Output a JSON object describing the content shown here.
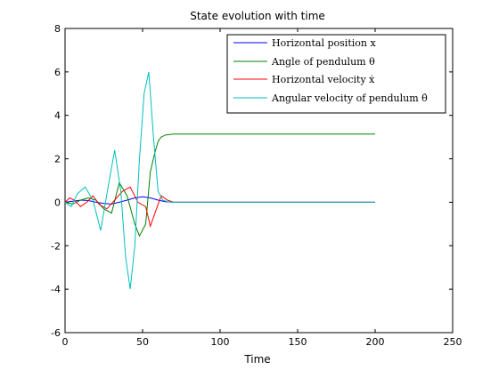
{
  "chart_data": {
    "type": "line",
    "title": "State evolution with time",
    "xlabel": "Time",
    "ylabel": "",
    "xlim": [
      0,
      250
    ],
    "ylim": [
      -6,
      8
    ],
    "xticks": [
      0,
      50,
      100,
      150,
      200,
      250
    ],
    "yticks": [
      -6,
      -4,
      -2,
      0,
      2,
      4,
      6,
      8
    ],
    "grid": false,
    "legend_position": "top-right",
    "series": [
      {
        "name": "Horizontal position x",
        "color": "#0000ff",
        "x": [
          0,
          5,
          10,
          15,
          20,
          25,
          30,
          35,
          40,
          45,
          50,
          55,
          60,
          65,
          70,
          200
        ],
        "y": [
          0,
          0.05,
          0.1,
          0.08,
          0.0,
          -0.05,
          -0.08,
          0.0,
          0.1,
          0.2,
          0.25,
          0.2,
          0.1,
          0.02,
          0,
          0
        ]
      },
      {
        "name": "Angle of pendulum θ",
        "color": "#008000",
        "x": [
          0,
          5,
          10,
          15,
          20,
          25,
          30,
          35,
          40,
          45,
          48,
          52,
          55,
          58,
          60,
          62,
          65,
          70,
          80,
          200
        ],
        "y": [
          0,
          -0.08,
          0.1,
          0.2,
          0.1,
          -0.3,
          -0.5,
          0.9,
          0.3,
          -1.0,
          -1.55,
          -1.0,
          1.4,
          2.3,
          2.8,
          3.0,
          3.1,
          3.14,
          3.14,
          3.14
        ]
      },
      {
        "name": "Horizontal velocity ẋ",
        "color": "#ff0000",
        "x": [
          0,
          3,
          6,
          10,
          14,
          18,
          22,
          27,
          32,
          37,
          42,
          47,
          52,
          55,
          58,
          62,
          66,
          70,
          200
        ],
        "y": [
          0,
          0.2,
          0.1,
          -0.2,
          0.0,
          0.3,
          -0.1,
          -0.3,
          0.1,
          0.5,
          0.7,
          0.0,
          -0.2,
          -1.1,
          -0.5,
          0.3,
          0.1,
          0,
          0
        ]
      },
      {
        "name": "Angular velocity of pendulum θ̇",
        "color": "#00bfbf",
        "x": [
          0,
          4,
          8,
          13,
          18,
          23,
          28,
          32,
          36,
          39,
          42,
          45,
          48,
          51,
          54,
          57,
          60,
          63,
          66,
          70,
          200
        ],
        "y": [
          0,
          -0.2,
          0.4,
          0.7,
          0.1,
          -1.3,
          0.8,
          2.4,
          0.5,
          -2.5,
          -4.0,
          -2.0,
          2.0,
          5.0,
          6.0,
          3.0,
          0.5,
          0.1,
          0.03,
          0,
          0
        ]
      }
    ]
  }
}
